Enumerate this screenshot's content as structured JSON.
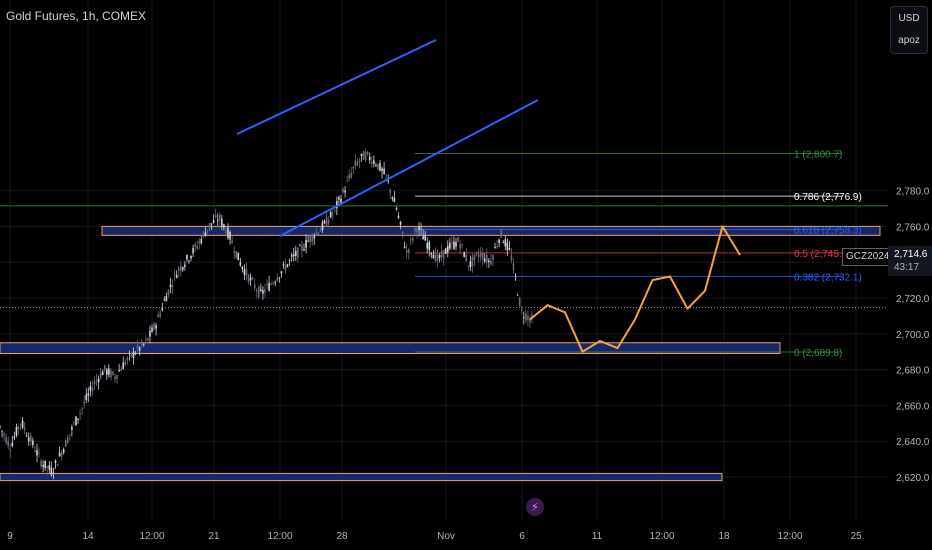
{
  "header": {
    "title": "Gold Futures, 1h, COMEX"
  },
  "toolbar": {
    "currency": "USD",
    "user": "apoz"
  },
  "ticker": {
    "symbol": "GCZ2024",
    "last_price": "2,714.6",
    "countdown": "43:17"
  },
  "badge_icon": "lightning-icon",
  "chart_data": {
    "type": "candlestick",
    "title": "Gold Futures, 1h, COMEX",
    "ylim": [
      2608,
      2813
    ],
    "y_ticks": [
      2620,
      2640,
      2660,
      2680,
      2700,
      2720,
      2740,
      2760,
      2780
    ],
    "y_tick_labels": [
      "2,620.0",
      "2,640.0",
      "2,660.0",
      "2,680.0",
      "2,700.0",
      "2,720.0",
      "2,740.0",
      "2,760.0",
      "2,780.0"
    ],
    "x_ticks": [
      "9",
      "14",
      "12:00",
      "21",
      "12:00",
      "28",
      "Nov",
      "6",
      "11",
      "12:00",
      "18",
      "12:00",
      "25"
    ],
    "current_price": 2714.6,
    "fib_levels": [
      {
        "label": "1 (2,800.7)",
        "price": 2800.7,
        "color": "#388e3c"
      },
      {
        "label": "0.786 (2,776.9)",
        "price": 2776.9,
        "color": "#ffffff"
      },
      {
        "label": "0.618 (2,758.3)",
        "price": 2758.3,
        "color": "#2962ff"
      },
      {
        "label": "0.5 (2,745.2)",
        "price": 2745.2,
        "color": "#f23645"
      },
      {
        "label": "0.382 (2,732.1)",
        "price": 2732.1,
        "color": "#2962ff"
      },
      {
        "label": "0 (2,689.8)",
        "price": 2689.8,
        "color": "#388e3c"
      }
    ],
    "horizontal_line": 2771.5,
    "zones": [
      {
        "price_top": 2760,
        "price_bottom": 2755
      },
      {
        "price_top": 2695,
        "price_bottom": 2689
      },
      {
        "price_top": 2622,
        "price_bottom": 2618
      }
    ],
    "price_path": [
      [
        2648,
        2637,
        2651,
        2640,
        2628,
        2623,
        2635,
        2648,
        2660,
        2672,
        2680,
        2676,
        2684,
        2690,
        2695,
        2706,
        2722,
        2735,
        2742,
        2750,
        2760,
        2765,
        2755,
        2740,
        2730,
        2722,
        2728,
        2735,
        2742,
        2748,
        2755,
        2760,
        2768,
        2780,
        2794,
        2800,
        2796,
        2788,
        2770,
        2745,
        2760,
        2750,
        2741,
        2748,
        2752,
        2738,
        2745,
        2740,
        2756,
        2744,
        2712,
        2708
      ]
    ],
    "trend_channel": [
      {
        "from": [
          2768,
          0.255
        ],
        "to": [
          2803,
          0.465
        ]
      },
      {
        "from": [
          2723,
          0.3
        ],
        "to": [
          2787,
          0.575
        ]
      }
    ],
    "projection": [
      2708,
      2716,
      2712,
      2690,
      2696,
      2692,
      2708,
      2730,
      2732,
      2714,
      2724,
      2760,
      2744
    ]
  }
}
